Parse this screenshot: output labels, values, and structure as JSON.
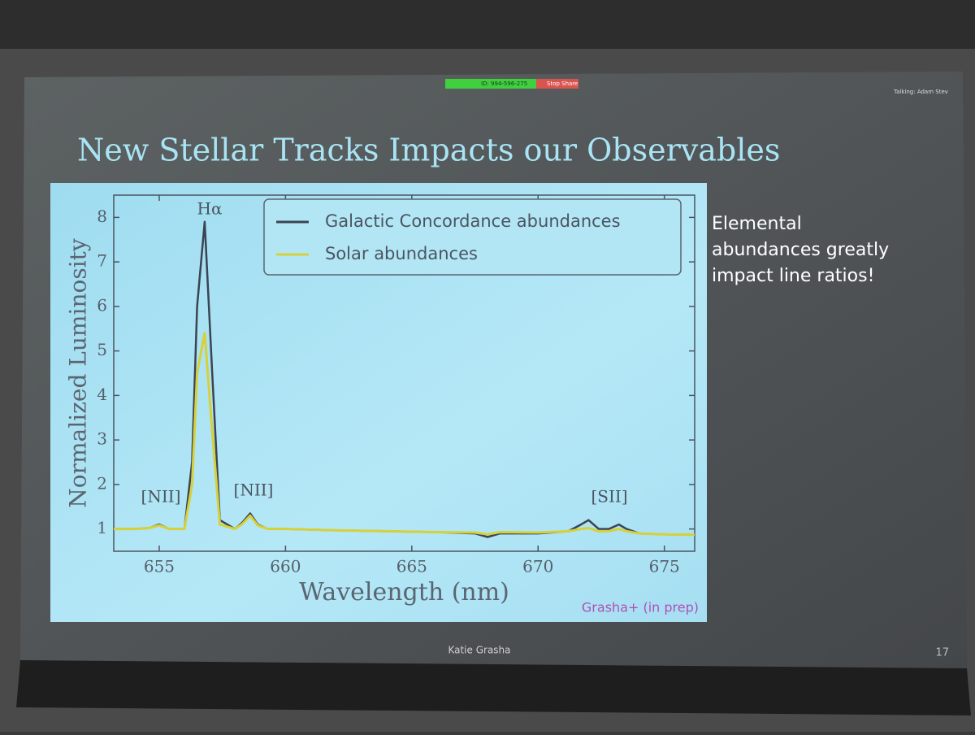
{
  "zoom_bar": {
    "meeting_id": "ID: 994-596-275",
    "stop_share": "Stop Share",
    "talking": "Talking: Adam Stev"
  },
  "slide": {
    "title": "New Stellar Tracks Impacts our Observables",
    "side_text": [
      "Elemental",
      "abundances greatly",
      "impact line ratios!"
    ],
    "footer": "Katie Grasha",
    "page_number": "17"
  },
  "chart_data": {
    "type": "line",
    "x_label": "Wavelength (nm)",
    "y_label": "Normalized Luminosity",
    "credit": "Grasha+ (in prep)",
    "annotations": [
      "Hα",
      "[NII]",
      "[NII]",
      "[SII]"
    ],
    "x": [
      653.2,
      654,
      654.6,
      655,
      655.4,
      656,
      656.3,
      656.5,
      656.8,
      657.1,
      657.4,
      658,
      658.3,
      658.6,
      658.9,
      659.3,
      660,
      662,
      664,
      666,
      667.5,
      668,
      668.5,
      670,
      671.2,
      671.7,
      672,
      672.4,
      672.8,
      673.2,
      673.5,
      674,
      675,
      676.2
    ],
    "series": [
      {
        "name": "Galactic Concordance abundances",
        "color": "#3b4453",
        "values": [
          1.0,
          1.0,
          1.02,
          1.1,
          1.0,
          1.0,
          2.5,
          6.0,
          7.9,
          4.5,
          1.2,
          1.0,
          1.15,
          1.35,
          1.1,
          1.0,
          1.0,
          0.97,
          0.95,
          0.93,
          0.9,
          0.82,
          0.9,
          0.9,
          0.95,
          1.1,
          1.2,
          1.0,
          1.0,
          1.1,
          1.0,
          0.9,
          0.88,
          0.87
        ]
      },
      {
        "name": "Solar abundances",
        "color": "#d6d13a",
        "values": [
          1.0,
          1.0,
          1.02,
          1.08,
          1.0,
          1.0,
          2.0,
          4.5,
          5.4,
          3.2,
          1.1,
          1.0,
          1.12,
          1.3,
          1.08,
          1.0,
          1.0,
          0.97,
          0.95,
          0.93,
          0.92,
          0.88,
          0.93,
          0.92,
          0.95,
          1.0,
          1.02,
          0.95,
          0.95,
          1.0,
          0.95,
          0.9,
          0.88,
          0.87
        ]
      }
    ],
    "xlim": [
      653.2,
      676.2
    ],
    "xticks": [
      655,
      660,
      665,
      670,
      675
    ],
    "ylim": [
      0.5,
      8.5
    ],
    "yticks": [
      1,
      2,
      3,
      4,
      5,
      6,
      7,
      8
    ],
    "grid": false,
    "legend": "upper right"
  }
}
